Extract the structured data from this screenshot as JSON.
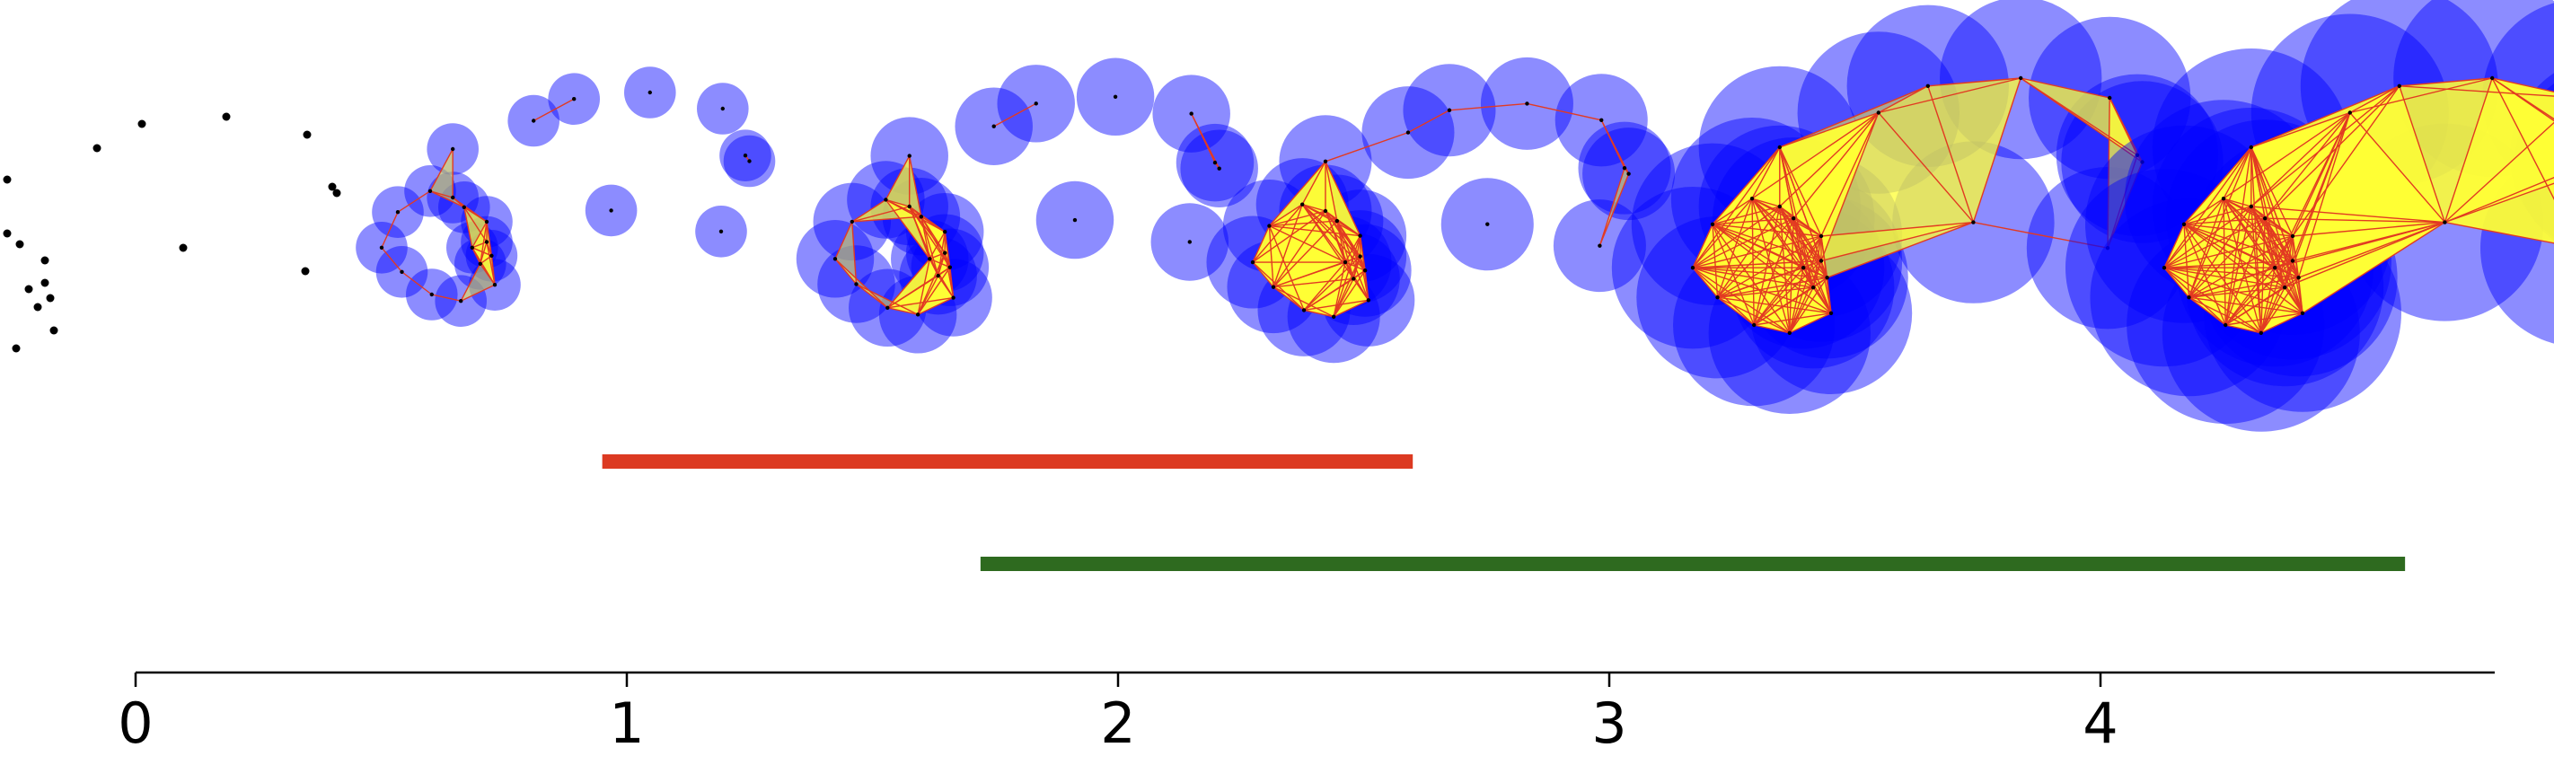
{
  "colors": {
    "point": "#000000",
    "ball_fill": "#0000ff",
    "simplex_fill": "#ffff33",
    "edge": "#e23a22",
    "bar_h0": "#dc3a22",
    "bar_h1": "#2e6a1f",
    "axis": "#000000"
  },
  "axis": {
    "ticks": [
      {
        "value": 0,
        "label": "0"
      },
      {
        "value": 1,
        "label": "1"
      },
      {
        "value": 2,
        "label": "2"
      },
      {
        "value": 3,
        "label": "3"
      },
      {
        "value": 4,
        "label": "4"
      }
    ],
    "range": [
      0,
      4.8
    ]
  },
  "barcode": [
    {
      "name": "bar-red",
      "start": 0.95,
      "end": 2.6,
      "color": "#dc3a22"
    },
    {
      "name": "bar-green",
      "start": 1.72,
      "end": 4.62,
      "color": "#2e6a1f"
    }
  ],
  "filtration_panels": [
    {
      "label": "point-cloud",
      "radius": 0,
      "simplex": false
    },
    {
      "label": "radius-small",
      "radius": 0.32,
      "simplex": true
    },
    {
      "label": "radius-medium",
      "radius": 0.46,
      "simplex": true
    },
    {
      "label": "radius-medium-large",
      "radius": 0.56,
      "simplex": true
    },
    {
      "label": "radius-large",
      "radius": 0.82,
      "simplex": true
    },
    {
      "label": "radius-largest",
      "radius": 1.0,
      "simplex": true
    }
  ]
}
